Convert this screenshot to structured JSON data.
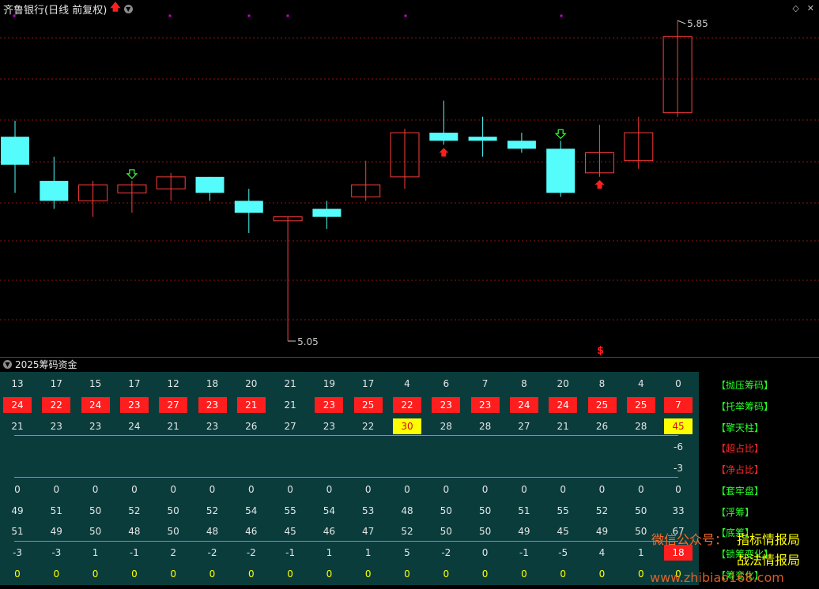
{
  "header": {
    "title": "齐鲁银行(日线 前复权)",
    "chart_high_label": "5.85",
    "chart_low_label": "5.05",
    "dollar_marker": "$"
  },
  "panel": {
    "title": "2025筹码资金"
  },
  "chart_data": {
    "type": "candlestick",
    "candles": [
      {
        "o": 5.56,
        "h": 5.6,
        "l": 5.42,
        "c": 5.49,
        "signal": ""
      },
      {
        "o": 5.45,
        "h": 5.51,
        "l": 5.38,
        "c": 5.4,
        "signal": ""
      },
      {
        "o": 5.4,
        "h": 5.45,
        "l": 5.36,
        "c": 5.44,
        "signal": ""
      },
      {
        "o": 5.42,
        "h": 5.45,
        "l": 5.37,
        "c": 5.44,
        "signal": "down-arrow"
      },
      {
        "o": 5.43,
        "h": 5.47,
        "l": 5.4,
        "c": 5.46,
        "signal": ""
      },
      {
        "o": 5.46,
        "h": 5.46,
        "l": 5.4,
        "c": 5.42,
        "signal": ""
      },
      {
        "o": 5.4,
        "h": 5.43,
        "l": 5.32,
        "c": 5.37,
        "signal": ""
      },
      {
        "o": 5.35,
        "h": 5.36,
        "l": 5.05,
        "c": 5.36,
        "signal": ""
      },
      {
        "o": 5.38,
        "h": 5.4,
        "l": 5.33,
        "c": 5.36,
        "signal": ""
      },
      {
        "o": 5.41,
        "h": 5.5,
        "l": 5.4,
        "c": 5.44,
        "signal": ""
      },
      {
        "o": 5.46,
        "h": 5.58,
        "l": 5.43,
        "c": 5.57,
        "signal": ""
      },
      {
        "o": 5.57,
        "h": 5.65,
        "l": 5.54,
        "c": 5.55,
        "signal": "up-arrow"
      },
      {
        "o": 5.56,
        "h": 5.61,
        "l": 5.51,
        "c": 5.55,
        "signal": ""
      },
      {
        "o": 5.55,
        "h": 5.57,
        "l": 5.52,
        "c": 5.53,
        "signal": ""
      },
      {
        "o": 5.53,
        "h": 5.55,
        "l": 5.41,
        "c": 5.42,
        "signal": "down-arrow"
      },
      {
        "o": 5.47,
        "h": 5.59,
        "l": 5.46,
        "c": 5.52,
        "signal": "up-arrow"
      },
      {
        "o": 5.5,
        "h": 5.61,
        "l": 5.48,
        "c": 5.57,
        "signal": ""
      },
      {
        "o": 5.62,
        "h": 5.85,
        "l": 5.61,
        "c": 5.81,
        "signal": ""
      }
    ],
    "colors": {
      "up": "#ff3c3c",
      "down": "#54fcfc",
      "grid": "#8c1414",
      "marker": "#c800c8"
    }
  },
  "rows": [
    {
      "label": "【抛压筹码】",
      "label_color": "green",
      "values": [
        "13",
        "17",
        "15",
        "17",
        "12",
        "18",
        "20",
        "21",
        "19",
        "17",
        "4",
        "6",
        "7",
        "8",
        "20",
        "8",
        "4",
        "0"
      ],
      "styles": []
    },
    {
      "label": "【托举筹码】",
      "label_color": "green",
      "values": [
        "24",
        "22",
        "24",
        "23",
        "27",
        "23",
        "21",
        "21",
        "23",
        "25",
        "22",
        "23",
        "23",
        "24",
        "24",
        "25",
        "25",
        "7"
      ],
      "styles": [
        "red",
        "red",
        "red",
        "red",
        "red",
        "red",
        "red",
        "",
        "red",
        "red",
        "red",
        "red",
        "red",
        "red",
        "red",
        "red",
        "red",
        "red"
      ]
    },
    {
      "label": "【擎天柱】",
      "label_color": "green",
      "values": [
        "21",
        "23",
        "23",
        "24",
        "21",
        "23",
        "26",
        "27",
        "23",
        "22",
        "30",
        "28",
        "28",
        "27",
        "21",
        "26",
        "28",
        "45"
      ],
      "styles": [
        "",
        "",
        "",
        "",
        "",
        "",
        "",
        "",
        "",
        "",
        "ybox",
        "",
        "",
        "",
        "",
        "",
        "",
        "ybox"
      ]
    },
    {
      "label": "【超占比】",
      "label_color": "red",
      "values": [
        "",
        "",
        "",
        "",
        "",
        "",
        "",
        "",
        "",
        "",
        "",
        "",
        "",
        "",
        "",
        "",
        "",
        "-6"
      ],
      "styles": []
    },
    {
      "label": "【净占比】",
      "label_color": "red",
      "values": [
        "",
        "",
        "",
        "",
        "",
        "",
        "",
        "",
        "",
        "",
        "",
        "",
        "",
        "",
        "",
        "",
        "",
        "-3"
      ],
      "styles": []
    },
    {
      "label": "【套牢盘】",
      "label_color": "green",
      "values": [
        "0",
        "0",
        "0",
        "0",
        "0",
        "0",
        "0",
        "0",
        "0",
        "0",
        "0",
        "0",
        "0",
        "0",
        "0",
        "0",
        "0",
        "0"
      ],
      "styles": []
    },
    {
      "label": "【浮筹】",
      "label_color": "green",
      "values": [
        "49",
        "51",
        "50",
        "52",
        "50",
        "52",
        "54",
        "55",
        "54",
        "53",
        "48",
        "50",
        "50",
        "51",
        "55",
        "52",
        "50",
        "33"
      ],
      "styles": []
    },
    {
      "label": "【底筹】",
      "label_color": "green",
      "values": [
        "51",
        "49",
        "50",
        "48",
        "50",
        "48",
        "46",
        "45",
        "46",
        "47",
        "52",
        "50",
        "50",
        "49",
        "45",
        "49",
        "50",
        "67"
      ],
      "styles": []
    },
    {
      "label": "【锁筹变化】",
      "label_color": "green",
      "values": [
        "-3",
        "-3",
        "1",
        "-1",
        "2",
        "-2",
        "-2",
        "-1",
        "1",
        "1",
        "5",
        "-2",
        "0",
        "-1",
        "-5",
        "4",
        "1",
        "18"
      ],
      "styles": [
        "",
        "",
        "",
        "",
        "",
        "",
        "",
        "",
        "",
        "",
        "",
        "",
        "",
        "",
        "",
        "",
        "",
        "red"
      ]
    },
    {
      "label": "【筹变化】",
      "label_color": "green",
      "values": [
        "0",
        "0",
        "0",
        "0",
        "0",
        "0",
        "0",
        "0",
        "0",
        "0",
        "0",
        "0",
        "0",
        "0",
        "0",
        "0",
        "0",
        "0"
      ],
      "styles": [
        "y",
        "y",
        "y",
        "y",
        "y",
        "y",
        "y",
        "y",
        "y",
        "y",
        "y",
        "y",
        "y",
        "y",
        "y",
        "y",
        "y",
        "y"
      ]
    }
  ],
  "watermark": {
    "line1_orange": "微信公众号：",
    "line1_yellow": "指标情报局",
    "line2": "战法情报局",
    "line3": "www.zhibiao168.com"
  },
  "icons": {
    "title_arrow": "up-arrow-icon",
    "menu": "chevron-down-icon",
    "diamond": "diamond-icon",
    "close": "close-icon"
  }
}
